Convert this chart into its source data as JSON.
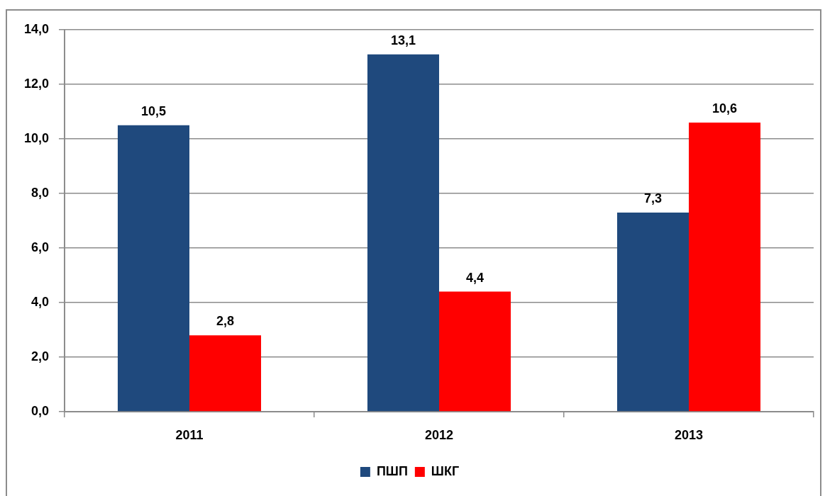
{
  "chart_data": {
    "type": "bar",
    "categories": [
      "2011",
      "2012",
      "2013"
    ],
    "series": [
      {
        "name": "ПШП",
        "color": "#1f497d",
        "values": [
          10.5,
          13.1,
          7.3
        ],
        "value_labels": [
          "10,5",
          "13,1",
          "7,3"
        ]
      },
      {
        "name": "ШКГ",
        "color": "#ff0000",
        "values": [
          2.8,
          4.4,
          10.6
        ],
        "value_labels": [
          "2,8",
          "4,4",
          "10,6"
        ]
      }
    ],
    "ylim": [
      0,
      14
    ],
    "yticks": [
      {
        "value": 0,
        "label": "0,0"
      },
      {
        "value": 2,
        "label": "2,0"
      },
      {
        "value": 4,
        "label": "4,0"
      },
      {
        "value": 6,
        "label": "6,0"
      },
      {
        "value": 8,
        "label": "8,0"
      },
      {
        "value": 10,
        "label": "10,0"
      },
      {
        "value": 12,
        "label": "12,0"
      },
      {
        "value": 14,
        "label": "14,0"
      }
    ],
    "grid": "y",
    "legend": "bottom"
  }
}
